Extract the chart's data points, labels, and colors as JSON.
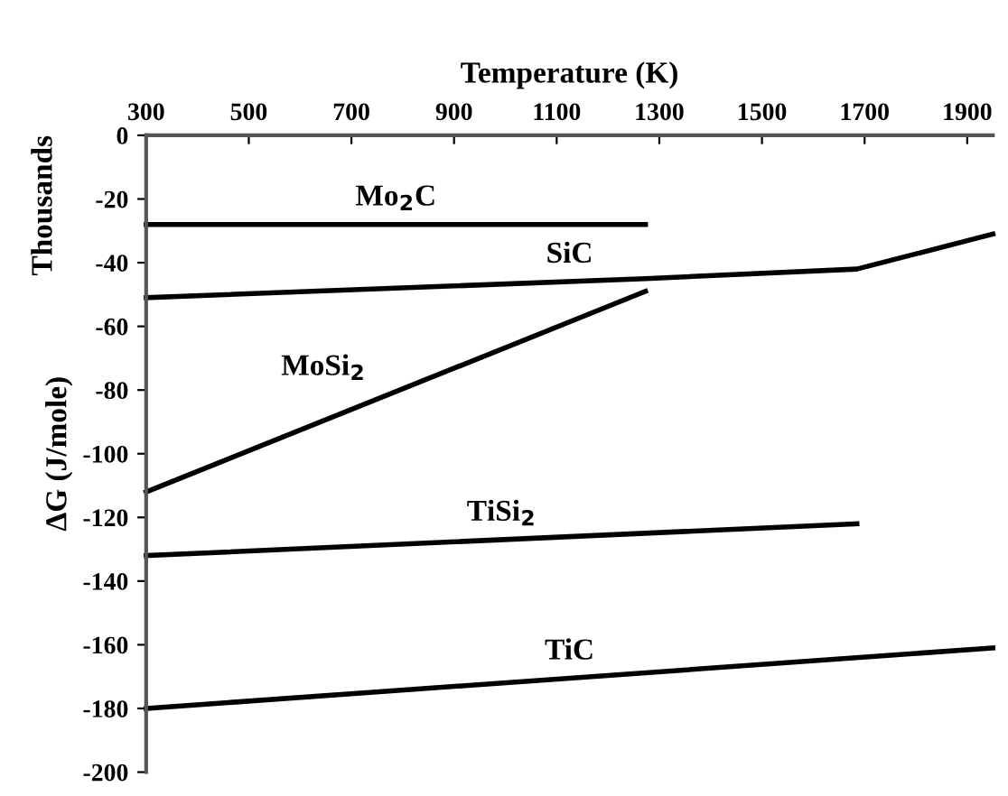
{
  "chart_data": {
    "type": "line",
    "xlabel": "Temperature (K)",
    "ylabel": "ΔG (J/mole)",
    "annotations": [
      "Thousands"
    ],
    "xlim": [
      300,
      1950
    ],
    "xticks": [
      300,
      500,
      700,
      900,
      1100,
      1300,
      1500,
      1700,
      1900
    ],
    "ylim": [
      -200,
      0
    ],
    "yticks": [
      0,
      -20,
      -40,
      -60,
      -80,
      -100,
      -120,
      -140,
      -160,
      -180,
      -200
    ],
    "grid": false,
    "legend": false,
    "marker": "none",
    "line_style": "solid",
    "series": [
      {
        "name": "Mo$_{2}$C",
        "color": "#000000",
        "x": [
          300,
          1273
        ],
        "values": [
          -28,
          -28
        ]
      },
      {
        "name": "SiC",
        "color": "#000000",
        "x": [
          300,
          1273,
          1685,
          1950
        ],
        "values": [
          -51,
          -45,
          -42,
          -31
        ]
      },
      {
        "name": "MoSi$_{2}$",
        "color": "#000000",
        "x": [
          300,
          1273
        ],
        "values": [
          -112,
          -49
        ]
      },
      {
        "name": "TiSi$_{2}$",
        "color": "#000000",
        "x": [
          300,
          1685
        ],
        "values": [
          -132,
          -122
        ]
      },
      {
        "name": "TiC",
        "color": "#000000",
        "x": [
          300,
          1950
        ],
        "values": [
          -180,
          -161
        ]
      }
    ]
  }
}
